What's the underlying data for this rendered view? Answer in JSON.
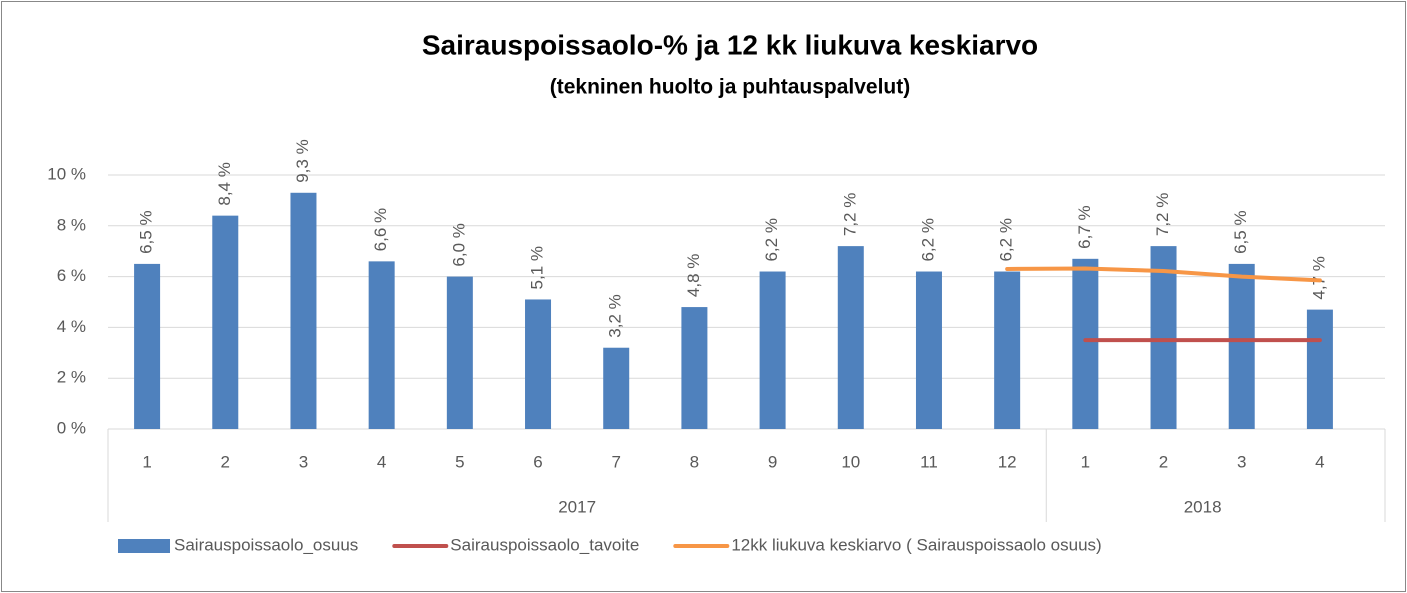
{
  "chart_data": {
    "type": "bar",
    "title": "Sairauspoissaolo-% ja 12 kk liukuva keskiarvo",
    "subtitle": "(tekninen huolto ja puhtauspalvelut)",
    "categories": [
      "1",
      "2",
      "3",
      "4",
      "5",
      "6",
      "7",
      "8",
      "9",
      "10",
      "11",
      "12",
      "1",
      "2",
      "3",
      "4"
    ],
    "category_groups": [
      {
        "label": "2017",
        "count": 12
      },
      {
        "label": "2018",
        "count": 4
      }
    ],
    "series": [
      {
        "name": "Sairauspoissaolo_osuus",
        "type": "bar",
        "color": "#4f81bd",
        "values": [
          6.5,
          8.4,
          9.3,
          6.6,
          6.0,
          5.1,
          3.2,
          4.8,
          6.2,
          7.2,
          6.2,
          6.2,
          6.7,
          7.2,
          6.5,
          4.7
        ],
        "value_labels": [
          "6,5 %",
          "8,4 %",
          "9,3 %",
          "6,6 %",
          "6,0 %",
          "5,1 %",
          "3,2 %",
          "4,8 %",
          "6,2 %",
          "7,2 %",
          "6,2 %",
          "6,2 %",
          "6,7 %",
          "7,2 %",
          "6,5 %",
          "4,7 %"
        ]
      },
      {
        "name": "Sairauspoissaolo_tavoite",
        "type": "line",
        "color": "#c0504d",
        "values": [
          null,
          null,
          null,
          null,
          null,
          null,
          null,
          null,
          null,
          null,
          null,
          null,
          3.5,
          3.5,
          3.5,
          3.5
        ]
      },
      {
        "name": "12kk liukuva keskiarvo ( Sairauspoissaolo osuus)",
        "type": "line",
        "color": "#f79646",
        "values": [
          null,
          null,
          null,
          null,
          null,
          null,
          null,
          null,
          null,
          null,
          null,
          6.3,
          6.32,
          6.22,
          6.0,
          5.85
        ]
      }
    ],
    "ylim": [
      0,
      10
    ],
    "yticks": [
      {
        "value": 0,
        "label": "0 %"
      },
      {
        "value": 2,
        "label": "2 %"
      },
      {
        "value": 4,
        "label": "4 %"
      },
      {
        "value": 6,
        "label": "6 %"
      },
      {
        "value": 8,
        "label": "8 %"
      },
      {
        "value": 10,
        "label": "10 %"
      }
    ],
    "grid": true,
    "legend": "bottom"
  }
}
